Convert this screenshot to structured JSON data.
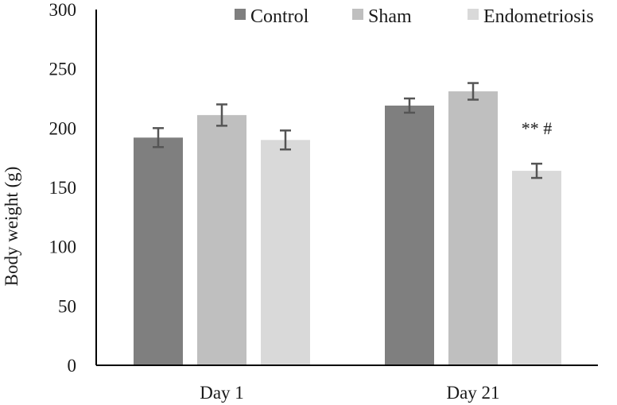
{
  "chart_data": {
    "type": "bar",
    "title": "",
    "xlabel": "",
    "ylabel": "Body weight (g)",
    "ylim": [
      0,
      300
    ],
    "yticks": [
      0,
      50,
      100,
      150,
      200,
      250,
      300
    ],
    "categories": [
      "Day 1",
      "Day 21"
    ],
    "series": [
      {
        "name": "Control",
        "color": "#7f7f7f",
        "values": [
          192,
          219
        ],
        "errors": [
          8,
          6
        ]
      },
      {
        "name": "Sham",
        "color": "#bfbfbf",
        "values": [
          211,
          231
        ],
        "errors": [
          9,
          7
        ]
      },
      {
        "name": "Endometriosis",
        "color": "#d9d9d9",
        "values": [
          190,
          164
        ],
        "errors": [
          8,
          6
        ]
      }
    ],
    "annotations": [
      {
        "text": "** #",
        "category": "Day 21",
        "series": "Endometriosis"
      }
    ],
    "legend_position": "top",
    "grid": false
  }
}
